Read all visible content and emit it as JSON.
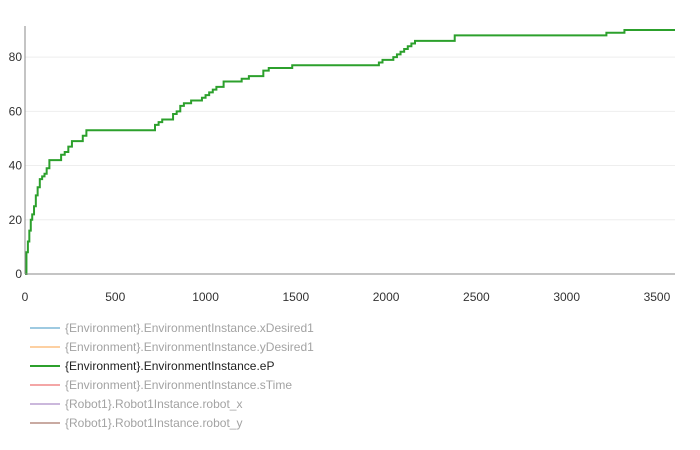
{
  "chart_data": {
    "type": "line",
    "step": true,
    "xlim": [
      0,
      3600
    ],
    "ylim": [
      0,
      90
    ],
    "x_ticks": [
      0,
      500,
      1000,
      1500,
      2000,
      2500,
      3000,
      3500
    ],
    "y_ticks": [
      0,
      20,
      40,
      60,
      80
    ],
    "grid": true,
    "legend_position": "bottom-left",
    "series": [
      {
        "name": "{Environment}.EnvironmentInstance.xDesired1",
        "color": "#9ecae1",
        "visible": false,
        "x": [],
        "y": []
      },
      {
        "name": "{Environment}.EnvironmentInstance.yDesired1",
        "color": "#fdd0a2",
        "visible": false,
        "x": [],
        "y": []
      },
      {
        "name": "{Environment}.EnvironmentInstance.eP",
        "color": "#2ca02c",
        "visible": true,
        "x": [
          0,
          8,
          16,
          24,
          32,
          40,
          50,
          60,
          70,
          82,
          95,
          108,
          120,
          135,
          150,
          165,
          180,
          200,
          220,
          240,
          260,
          280,
          300,
          320,
          340,
          360,
          380,
          700,
          720,
          740,
          760,
          780,
          800,
          820,
          840,
          860,
          880,
          920,
          940,
          960,
          980,
          1000,
          1020,
          1040,
          1060,
          1100,
          1180,
          1200,
          1240,
          1260,
          1300,
          1320,
          1350,
          1380,
          1420,
          1480,
          1500,
          1600,
          1700,
          1800,
          1900,
          1960,
          1980,
          2000,
          2020,
          2040,
          2060,
          2080,
          2100,
          2120,
          2140,
          2160,
          2180,
          2200,
          2250,
          2300,
          2350,
          2380,
          2420,
          2500,
          2600,
          2800,
          3000,
          3190,
          3220,
          3300,
          3320,
          3600
        ],
        "y": [
          0,
          8,
          12,
          16,
          20,
          22,
          25,
          29,
          32,
          35,
          36,
          37,
          39,
          42,
          42,
          42,
          42,
          44,
          45,
          47,
          49,
          49,
          49,
          51,
          53,
          53,
          53,
          53,
          55,
          56,
          57,
          57,
          57,
          59,
          60,
          62,
          63,
          64,
          64,
          64,
          65,
          66,
          67,
          68,
          69,
          71,
          71,
          72,
          73,
          73,
          73,
          75,
          76,
          76,
          76,
          77,
          77,
          77,
          77,
          77,
          77,
          78,
          79,
          79,
          79,
          80,
          81,
          82,
          83,
          84,
          85,
          86,
          86,
          86,
          86,
          86,
          86,
          88,
          88,
          88,
          88,
          88,
          88,
          88,
          89,
          89,
          90,
          90
        ]
      },
      {
        "name": "{Environment}.EnvironmentInstance.sTime",
        "color": "#f4a6a6",
        "visible": false,
        "x": [],
        "y": []
      },
      {
        "name": "{Robot1}.Robot1Instance.robot_x",
        "color": "#cbb8dc",
        "visible": false,
        "x": [],
        "y": []
      },
      {
        "name": "{Robot1}.Robot1Instance.robot_y",
        "color": "#c9aaa2",
        "visible": false,
        "x": [],
        "y": []
      }
    ]
  },
  "styles": {
    "axis_color": "#888888",
    "grid_color": "#eeeeee",
    "tick_text_color": "#333333",
    "legend_active_color": "#222222",
    "legend_inactive_color": "#a3a3a3"
  }
}
